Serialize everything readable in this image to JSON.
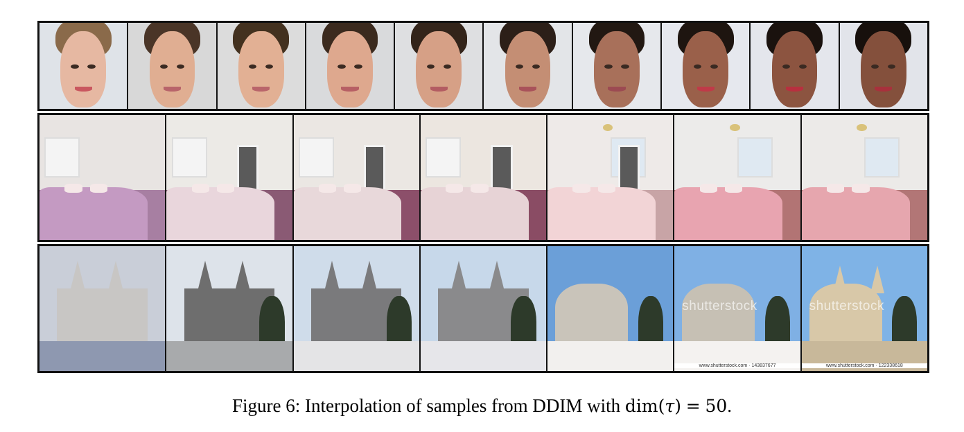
{
  "figure": {
    "caption_prefix": "Figure 6: Interpolation of samples from DDIM with",
    "math_dim": "dim",
    "math_open": "(",
    "math_tau": "τ",
    "math_close": ")",
    "math_equals": "=",
    "math_value": "50",
    "caption_end": "."
  },
  "rows": [
    {
      "name": "faces",
      "tiles": [
        {
          "bg": "#dfe3e8",
          "skin": "#e6b8a2",
          "hair": "#8a6a4a",
          "lip": "#c9575f"
        },
        {
          "bg": "#d8d8d8",
          "skin": "#e0ae92",
          "hair": "#4a3527",
          "lip": "#b8646a"
        },
        {
          "bg": "#dcdcdc",
          "skin": "#e2b094",
          "hair": "#43311f",
          "lip": "#b9656a"
        },
        {
          "bg": "#d9dadc",
          "skin": "#dea88e",
          "hair": "#3b2a1e",
          "lip": "#b75f64"
        },
        {
          "bg": "#dedfe1",
          "skin": "#d6a086",
          "hair": "#33241a",
          "lip": "#b35c62"
        },
        {
          "bg": "#e3e5e8",
          "skin": "#c48e74",
          "hair": "#2c1f18",
          "lip": "#a9525a"
        },
        {
          "bg": "#e6e8ec",
          "skin": "#a8705a",
          "hair": "#221812",
          "lip": "#9c4a52"
        },
        {
          "bg": "#e6e8ee",
          "skin": "#9a604a",
          "hair": "#1e1510",
          "lip": "#c03a48"
        },
        {
          "bg": "#e4e6ec",
          "skin": "#8c5440",
          "hair": "#1a120e",
          "lip": "#b8303f"
        },
        {
          "bg": "#e2e4ea",
          "skin": "#84503c",
          "hair": "#17100c",
          "lip": "#a8313c"
        }
      ]
    },
    {
      "name": "bedrooms",
      "tiles": [
        {
          "wall": "#e8e4e2",
          "floor": "#a77fa2",
          "bed": "#c49ac2",
          "door": false,
          "lamp": false
        },
        {
          "wall": "#eceae6",
          "floor": "#8a5a74",
          "bed": "#e9d6dc",
          "door": true,
          "lamp": false
        },
        {
          "wall": "#ebe7e3",
          "floor": "#8c4f6a",
          "bed": "#e8d8da",
          "door": true,
          "lamp": false
        },
        {
          "wall": "#ece6e0",
          "floor": "#8a4c64",
          "bed": "#e7d3d6",
          "door": true,
          "lamp": false
        },
        {
          "wall": "#eeeae8",
          "floor": "#c8a4a6",
          "bed": "#f2d4d6",
          "door": true,
          "lamp": true
        },
        {
          "wall": "#ecebea",
          "floor": "#b27474",
          "bed": "#e8a4b0",
          "door": false,
          "lamp": true
        },
        {
          "wall": "#eceae8",
          "floor": "#b27676",
          "bed": "#e6a6ae",
          "door": false,
          "lamp": true
        }
      ]
    },
    {
      "name": "churches",
      "tiles": [
        {
          "sky": "#c9ced8",
          "body": "#c8c6c4",
          "ground": "#8e98b0",
          "watermark": "",
          "credit": ""
        },
        {
          "sky": "#dde3ea",
          "body": "#6e6e6e",
          "ground": "#a8aaac",
          "watermark": "",
          "credit": ""
        },
        {
          "sky": "#cfdcea",
          "body": "#7a7a7c",
          "ground": "#e4e4e6",
          "watermark": "",
          "credit": ""
        },
        {
          "sky": "#c7d8ea",
          "body": "#8a8a8c",
          "ground": "#e6e6ea",
          "watermark": "",
          "credit": ""
        },
        {
          "sky": "#6b9fd8",
          "body": "#c9c4ba",
          "ground": "#f2f0ee",
          "watermark": "",
          "credit": ""
        },
        {
          "sky": "#7fb0e4",
          "body": "#c6c0b4",
          "ground": "#f4f2f0",
          "watermark": "shutterstock",
          "credit": "www.shutterstock.com · 143837677"
        },
        {
          "sky": "#7fb3e6",
          "body": "#d8c8a8",
          "ground": "#c8b89a",
          "watermark": "shutterstock",
          "credit": "www.shutterstock.com · 122338618"
        }
      ]
    }
  ]
}
